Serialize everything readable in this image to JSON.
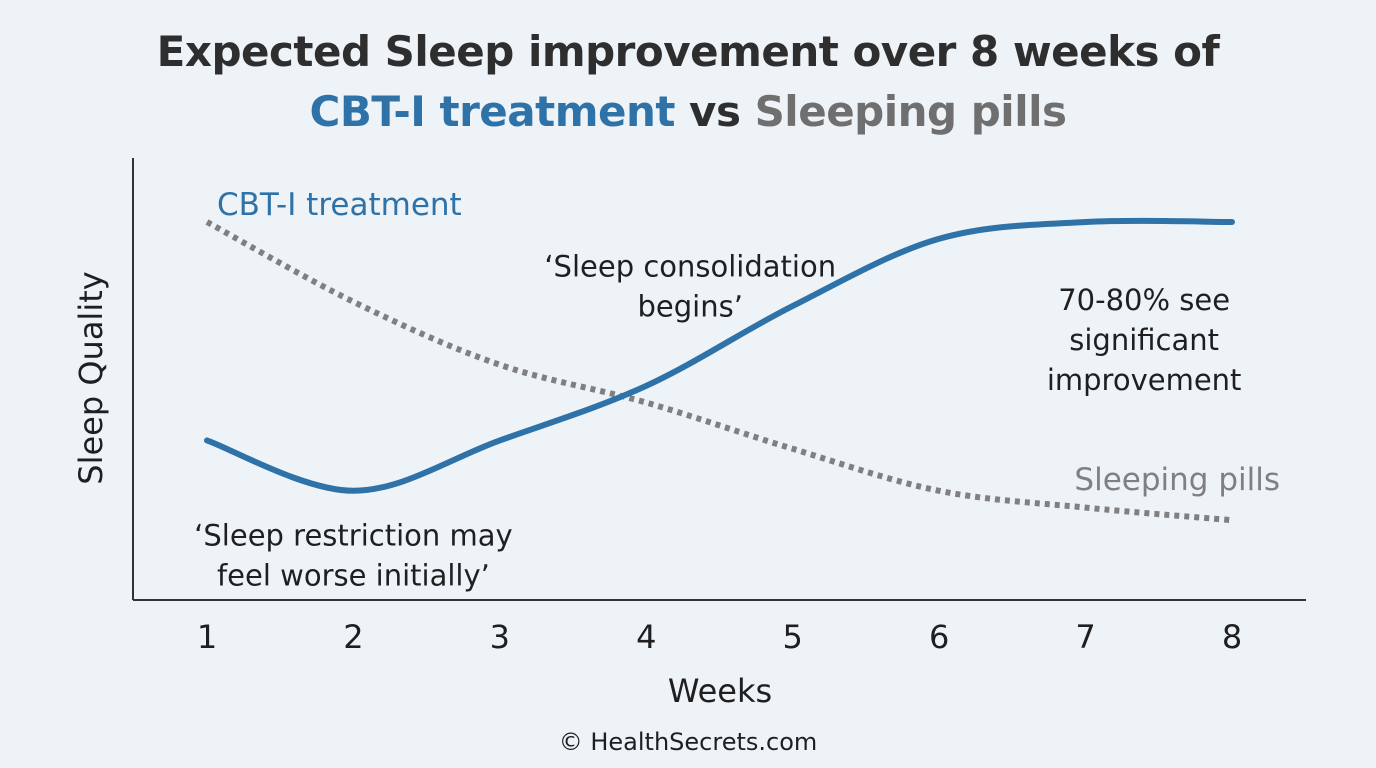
{
  "title": {
    "line1": "Expected Sleep improvement over 8 weeks of",
    "cbt": "CBT-I treatment",
    "vs": " vs ",
    "pills": "Sleeping pills"
  },
  "footer": "© HealthSecrets.com",
  "colors": {
    "cbt": "#2f72a8",
    "pills": "#808080",
    "axis": "#333333",
    "text": "#1f1f1f",
    "background": "#eef3f8"
  },
  "chart_data": {
    "type": "line",
    "xlabel": "Weeks",
    "ylabel": "Sleep Quality",
    "x": [
      1,
      2,
      3,
      4,
      5,
      6,
      7,
      8
    ],
    "xlim": [
      0,
      8.5
    ],
    "ylim": [
      0,
      10
    ],
    "y_ticks_shown": false,
    "grid": false,
    "series": [
      {
        "name": "CBT-I treatment",
        "style": "solid",
        "color": "#2f72a8",
        "values": [
          3.8,
          2.6,
          3.8,
          5.1,
          7.0,
          8.6,
          9.0,
          9.0
        ]
      },
      {
        "name": "Sleeping pills",
        "style": "dotted",
        "color": "#808080",
        "values": [
          9.0,
          7.1,
          5.6,
          4.7,
          3.6,
          2.6,
          2.2,
          1.9
        ]
      }
    ],
    "annotations": [
      {
        "lines": [
          "‘Sleep restriction may",
          "feel worse initially’"
        ],
        "x": 2.0,
        "y": 1.3
      },
      {
        "lines": [
          "‘Sleep consolidation",
          "begins’"
        ],
        "x": 4.3,
        "y": 7.7
      },
      {
        "lines": [
          "70-80% see",
          "significant",
          "improvement"
        ],
        "x": 7.4,
        "y": 6.9
      }
    ]
  }
}
